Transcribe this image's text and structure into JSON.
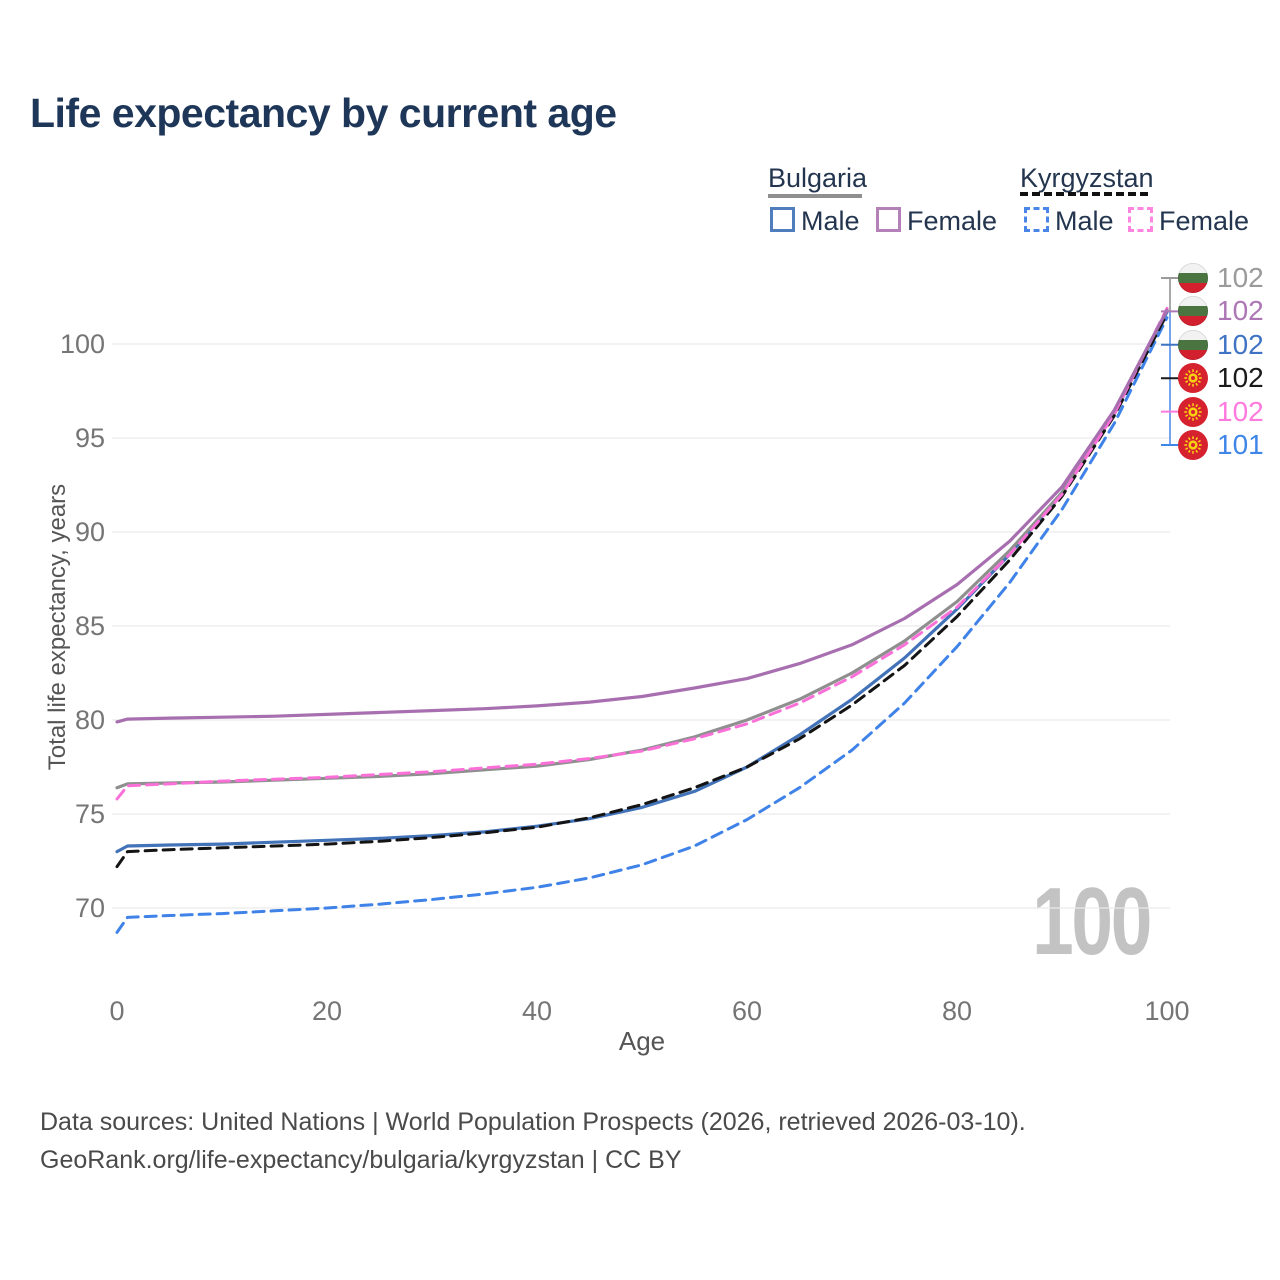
{
  "title": "Life expectancy by current age",
  "legend": {
    "bulgaria": {
      "label": "Bulgaria",
      "male": "Male",
      "female": "Female"
    },
    "kyrgyzstan": {
      "label": "Kyrgyzstan",
      "male": "Male",
      "female": "Female"
    }
  },
  "colors": {
    "bulgaria_male": "#4273b8",
    "bulgaria_female": "#a86fb0",
    "bulgaria_total": "#8f8f8f",
    "kyrgyzstan_male": "#3f82e8",
    "kyrgyzstan_female": "#fb70d8",
    "kyrgyzstan_total": "#141414",
    "gridline": "#e9e9e9",
    "tick_text": "#757575",
    "title_text": "#1e3657",
    "watermark": "#c3c3c3"
  },
  "chart_data": {
    "type": "line",
    "title": "Life expectancy by current age",
    "xlabel": "Age",
    "ylabel": "Total life expectancy, years",
    "x_ticks": [
      0,
      20,
      40,
      60,
      80,
      100
    ],
    "y_ticks": [
      70,
      75,
      80,
      85,
      90,
      95,
      100
    ],
    "xlim": [
      0,
      100
    ],
    "ylim": [
      70,
      100
    ],
    "grid": "horizontal-only",
    "legend_position": "top-right",
    "x": [
      0,
      1,
      5,
      10,
      15,
      20,
      25,
      30,
      35,
      40,
      45,
      50,
      55,
      60,
      65,
      70,
      75,
      80,
      85,
      90,
      95,
      100
    ],
    "series": [
      {
        "name": "Bulgaria Male",
        "style": "solid",
        "color": "#4273b8",
        "values": [
          73.0,
          73.3,
          73.35,
          73.4,
          73.5,
          73.6,
          73.7,
          73.85,
          74.05,
          74.35,
          74.75,
          75.35,
          76.2,
          77.5,
          79.2,
          81.1,
          83.3,
          85.9,
          88.8,
          92.1,
          96.4,
          101.7
        ]
      },
      {
        "name": "Bulgaria Total",
        "style": "solid",
        "color": "#8f8f8f",
        "values": [
          76.4,
          76.6,
          76.65,
          76.7,
          76.8,
          76.9,
          77.0,
          77.15,
          77.35,
          77.55,
          77.9,
          78.4,
          79.1,
          80.0,
          81.1,
          82.5,
          84.2,
          86.3,
          89.0,
          92.1,
          96.3,
          101.8
        ]
      },
      {
        "name": "Kyrgyzstan Male",
        "style": "dashed",
        "color": "#3f82e8",
        "values": [
          68.7,
          69.5,
          69.6,
          69.7,
          69.85,
          70.0,
          70.2,
          70.45,
          70.75,
          71.1,
          71.6,
          72.3,
          73.3,
          74.7,
          76.4,
          78.4,
          80.9,
          83.9,
          87.3,
          91.2,
          95.8,
          101.4
        ]
      },
      {
        "name": "Kyrgyzstan Total",
        "style": "dashed",
        "color": "#141414",
        "values": [
          72.2,
          73.0,
          73.1,
          73.2,
          73.3,
          73.4,
          73.55,
          73.75,
          74.0,
          74.3,
          74.8,
          75.5,
          76.4,
          77.5,
          79.0,
          80.8,
          82.9,
          85.5,
          88.5,
          91.9,
          96.2,
          101.6
        ]
      },
      {
        "name": "Kyrgyzstan Female",
        "style": "dashed",
        "color": "#fb70d8",
        "values": [
          75.8,
          76.5,
          76.6,
          76.75,
          76.85,
          76.95,
          77.1,
          77.25,
          77.45,
          77.65,
          77.95,
          78.35,
          79.0,
          79.8,
          80.9,
          82.3,
          84.0,
          86.0,
          88.8,
          92.0,
          96.3,
          101.9
        ]
      },
      {
        "name": "Bulgaria Female",
        "style": "solid",
        "color": "#a86fb0",
        "values": [
          79.9,
          80.05,
          80.1,
          80.15,
          80.2,
          80.3,
          80.4,
          80.5,
          80.6,
          80.75,
          80.95,
          81.25,
          81.7,
          82.2,
          83.0,
          84.0,
          85.4,
          87.2,
          89.5,
          92.4,
          96.5,
          101.8
        ]
      }
    ]
  },
  "end_labels": [
    {
      "flag": "bulgaria",
      "value": "102",
      "color": "#9a9a9a"
    },
    {
      "flag": "bulgaria",
      "value": "102",
      "color": "#ad77b5"
    },
    {
      "flag": "bulgaria",
      "value": "102",
      "color": "#3f74c4"
    },
    {
      "flag": "kyrgyzstan",
      "value": "102",
      "color": "#1a1a1a"
    },
    {
      "flag": "kyrgyzstan",
      "value": "102",
      "color": "#ff7ade"
    },
    {
      "flag": "kyrgyzstan",
      "value": "101",
      "color": "#3f86e8"
    }
  ],
  "watermark": "100",
  "footer": {
    "line1": "Data sources: United Nations | World Population Prospects (2026, retrieved 2026-03-10).",
    "line2": "GeoRank.org/life-expectancy/bulgaria/kyrgyzstan | CC BY"
  }
}
